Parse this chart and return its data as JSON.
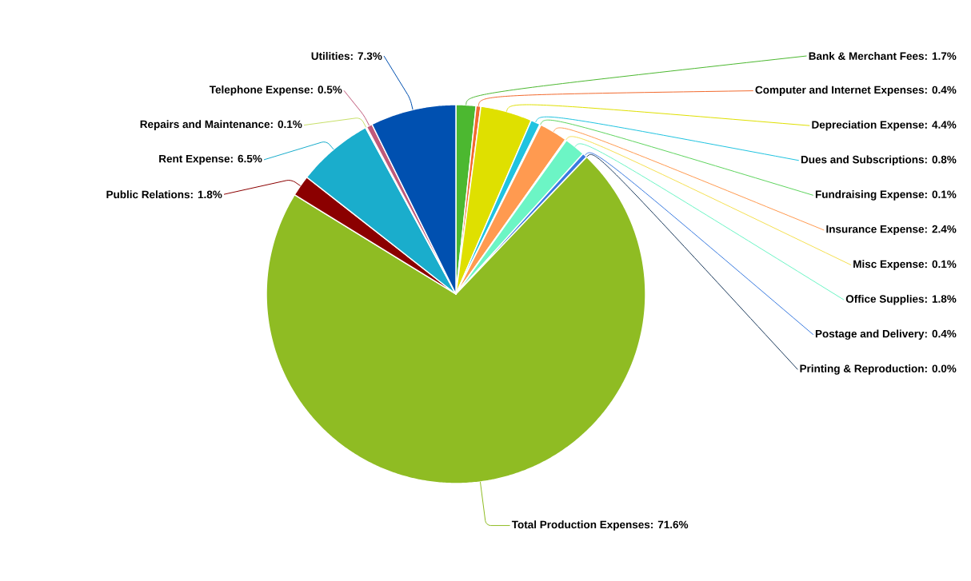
{
  "chart_data": {
    "type": "pie",
    "categories": [
      "Bank & Merchant Fees",
      "Computer and Internet Expenses",
      "Depreciation Expense",
      "Dues and Subscriptions",
      "Fundraising Expense",
      "Insurance Expense",
      "Misc Expense",
      "Office Supplies",
      "Postage and Delivery",
      "Printing & Reproduction",
      "Total Production Expenses",
      "Public Relations",
      "Rent Expense",
      "Repairs and Maintenance",
      "Telephone Expense",
      "Utilities"
    ],
    "values": [
      1.7,
      0.4,
      4.4,
      0.8,
      0.1,
      2.4,
      0.1,
      1.8,
      0.4,
      0.0,
      71.6,
      1.8,
      6.5,
      0.1,
      0.5,
      7.3
    ],
    "value_labels": [
      ": 1.7%",
      ": 0.4%",
      ": 4.4%",
      ": 0.8%",
      ": 0.1%",
      ": 2.4%",
      ": 0.1%",
      ": 1.8%",
      ": 0.4%",
      ": 0.0%",
      ": 71.6%",
      ": 1.8%",
      ": 6.5%",
      ": 0.1%",
      ": 0.5%",
      ": 7.3%"
    ],
    "colors": [
      "#4cb830",
      "#f26a2e",
      "#dfe000",
      "#1fc3e0",
      "#5ed45e",
      "#ff9a50",
      "#f5e050",
      "#6cf5c5",
      "#3a7be0",
      "#1b3a5c",
      "#8fbc23",
      "#8b0000",
      "#1aadcc",
      "#c8e06a",
      "#c05a7a",
      "#0050b0"
    ]
  }
}
